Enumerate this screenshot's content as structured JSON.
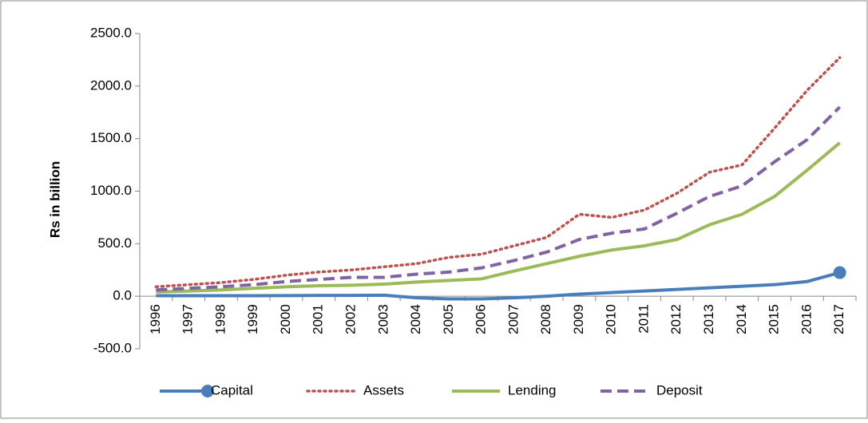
{
  "chart_data": {
    "type": "line",
    "ylabel": "Rs in billion",
    "categories": [
      "1996",
      "1997",
      "1998",
      "1999",
      "2000",
      "2001",
      "2002",
      "2003",
      "2004",
      "2005",
      "2006",
      "2007",
      "2008",
      "2009",
      "2010",
      "2011",
      "2012",
      "2013",
      "2014",
      "2015",
      "2016",
      "2017"
    ],
    "series": [
      {
        "name": "Capital",
        "color": "#4a7ebb",
        "dash": "solid",
        "end_marker": true,
        "values": [
          5,
          5,
          5,
          5,
          6,
          8,
          8,
          10,
          -15,
          -25,
          -25,
          -15,
          0,
          20,
          35,
          50,
          65,
          80,
          95,
          110,
          140,
          225
        ]
      },
      {
        "name": "Assets",
        "color": "#c0504d",
        "dash": "dotted",
        "values": [
          90,
          110,
          130,
          160,
          200,
          230,
          250,
          280,
          310,
          370,
          400,
          480,
          560,
          780,
          750,
          820,
          980,
          1180,
          1250,
          1600,
          1960,
          2270
        ]
      },
      {
        "name": "Lending",
        "color": "#9bbb59",
        "dash": "solid",
        "values": [
          40,
          50,
          60,
          75,
          90,
          100,
          105,
          115,
          135,
          150,
          165,
          240,
          310,
          380,
          440,
          480,
          540,
          680,
          780,
          950,
          1200,
          1460
        ]
      },
      {
        "name": "Deposit",
        "color": "#8064a2",
        "dash": "dashed",
        "values": [
          60,
          75,
          90,
          110,
          140,
          160,
          180,
          180,
          210,
          230,
          270,
          340,
          420,
          540,
          600,
          640,
          790,
          950,
          1050,
          1280,
          1490,
          1800
        ]
      }
    ],
    "ylim": [
      -500,
      2500
    ],
    "yticks": [
      {
        "value": -500,
        "label": "-500.0"
      },
      {
        "value": 0,
        "label": "0.0"
      },
      {
        "value": 500,
        "label": "500.0"
      },
      {
        "value": 1000,
        "label": "1000.0"
      },
      {
        "value": 1500,
        "label": "1500.0"
      },
      {
        "value": 2000,
        "label": "2000.0"
      },
      {
        "value": 2500,
        "label": "2500.0"
      }
    ],
    "legend": "bottom"
  }
}
